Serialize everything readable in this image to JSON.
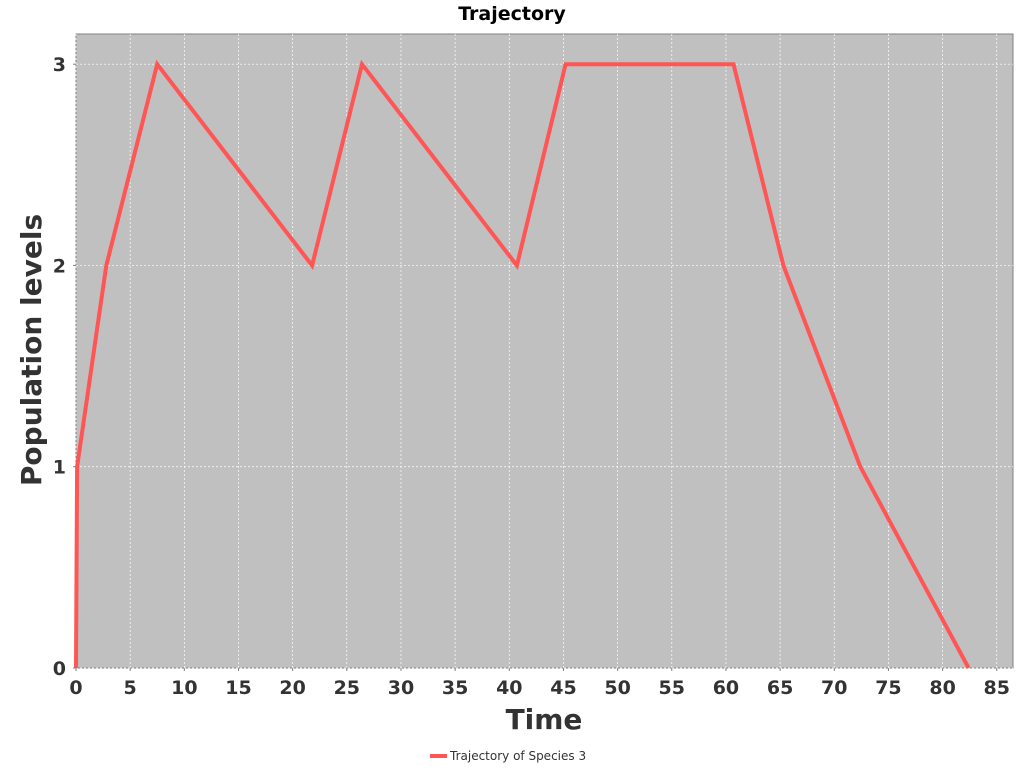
{
  "chart_data": {
    "type": "line",
    "title": "Trajectory",
    "xlabel": "Time",
    "ylabel": "Population levels",
    "xlim": [
      0,
      86.5
    ],
    "ylim": [
      0,
      3.15
    ],
    "x_ticks": [
      0,
      5,
      10,
      15,
      20,
      25,
      30,
      35,
      40,
      45,
      50,
      55,
      60,
      65,
      70,
      75,
      80,
      85
    ],
    "y_ticks": [
      0,
      1,
      2,
      3
    ],
    "grid": true,
    "legend_position": "bottom",
    "plot_background": "#c0c0c0",
    "series": [
      {
        "name": "Trajectory of Species 3",
        "color": "#ff5555",
        "x": [
          0.0,
          0.1,
          2.8,
          7.5,
          21.8,
          26.4,
          40.7,
          45.2,
          60.7,
          65.3,
          72.4,
          82.4
        ],
        "y": [
          0,
          1,
          2,
          3,
          2,
          3,
          2,
          3,
          3,
          2,
          1,
          0
        ]
      }
    ]
  }
}
